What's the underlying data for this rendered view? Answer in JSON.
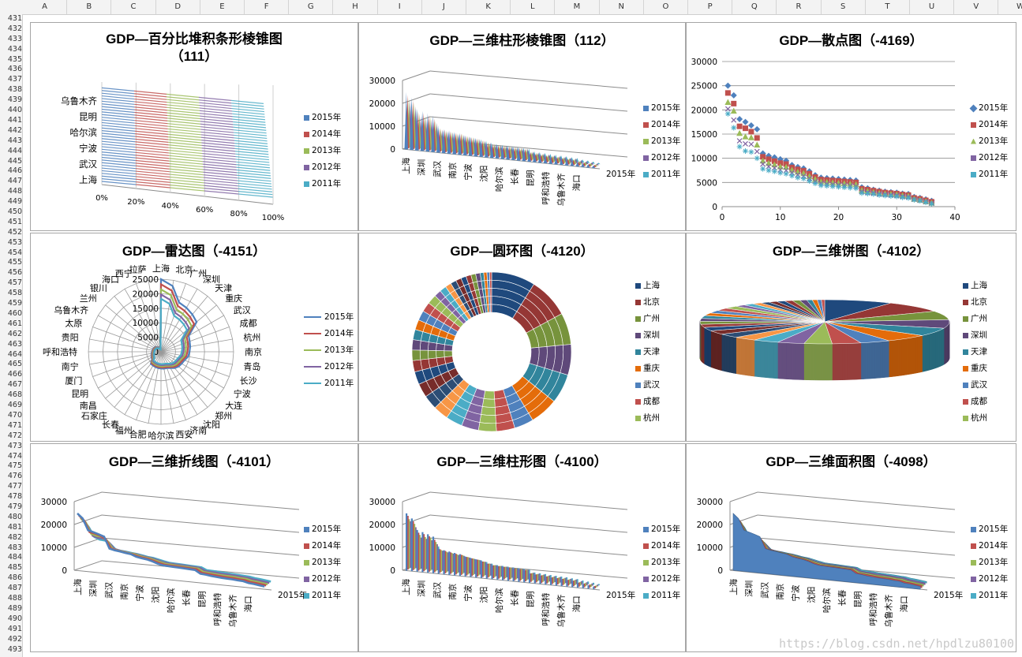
{
  "sheet": {
    "columns": [
      "A",
      "B",
      "C",
      "D",
      "E",
      "F",
      "G",
      "H",
      "I",
      "J",
      "K",
      "L",
      "M",
      "N",
      "O",
      "P",
      "Q",
      "R",
      "S",
      "T",
      "U",
      "V",
      "W"
    ],
    "row_start": 431,
    "row_end": 493
  },
  "years": [
    "2015年",
    "2014年",
    "2013年",
    "2012年",
    "2011年"
  ],
  "year_colors": [
    "#4f81bd",
    "#c0504d",
    "#9bbb59",
    "#8064a2",
    "#4bacc6"
  ],
  "city_colors": [
    "#1f497d",
    "#953735",
    "#77933c",
    "#5f497a",
    "#31859c",
    "#e46c0a",
    "#4f81bd",
    "#c0504d",
    "#9bbb59",
    "#8064a2",
    "#4bacc6",
    "#f79646",
    "#2c4d75",
    "#772c2a"
  ],
  "legend_cities": [
    "上海",
    "北京",
    "广州",
    "深圳",
    "天津",
    "重庆",
    "武汉",
    "成都",
    "杭州"
  ],
  "watermark": "https://blog.csdn.net/hpdlzu80100",
  "chart_data": [
    {
      "id": "p1",
      "type": "bar",
      "title": "GDP—百分比堆积条形棱锥图（111）",
      "title_line1": "GDP—百分比堆积条形棱锥图",
      "title_line2": "（111）",
      "categories": [
        "乌鲁木齐",
        "昆明",
        "哈尔滨",
        "宁波",
        "武汉",
        "上海"
      ],
      "x_ticks": [
        "0%",
        "20%",
        "40%",
        "60%",
        "80%",
        "100%"
      ],
      "series_shares": [
        0.2,
        0.2,
        0.2,
        0.2,
        0.2
      ]
    },
    {
      "id": "p2",
      "type": "bar",
      "title": "GDP—三维柱形棱锥图（112）",
      "y_ticks": [
        "30000",
        "20000",
        "10000",
        "0"
      ],
      "ylim": [
        0,
        30000
      ],
      "categories": [
        "上海",
        "深圳",
        "武汉",
        "南京",
        "宁波",
        "沈阳",
        "哈尔滨",
        "长春",
        "昆明",
        "呼和浩特",
        "乌鲁木齐",
        "海口"
      ],
      "depth_label": "2015年"
    },
    {
      "id": "p3",
      "type": "scatter",
      "title": "GDP—散点图（-4169）",
      "x_ticks": [
        "0",
        "10",
        "20",
        "30",
        "40"
      ],
      "y_ticks": [
        "30000",
        "25000",
        "20000",
        "15000",
        "10000",
        "5000",
        "0"
      ],
      "xlim": [
        0,
        40
      ],
      "ylim": [
        0,
        30000
      ],
      "series": [
        {
          "name": "2015年",
          "values": [
            25000,
            23000,
            18100,
            17500,
            16800,
            16000,
            11000,
            10500,
            10200,
            9800,
            9500,
            8600,
            8200,
            7900,
            7300,
            6500,
            6000,
            5900,
            5800,
            5700,
            5600,
            5500,
            5400,
            4000,
            3800,
            3500,
            3300,
            3100,
            3000,
            2900,
            2700,
            2600,
            2000,
            1800,
            1500,
            1200
          ]
        },
        {
          "name": "2014年",
          "values": [
            23500,
            21300,
            16600,
            16200,
            15500,
            14200,
            10300,
            9800,
            9400,
            9000,
            8800,
            8100,
            7700,
            7400,
            6800,
            6100,
            5600,
            5500,
            5400,
            5300,
            5200,
            5100,
            5000,
            3700,
            3500,
            3300,
            3100,
            2900,
            2800,
            2700,
            2500,
            2400,
            1800,
            1600,
            1300,
            1000
          ]
        },
        {
          "name": "2013年",
          "values": [
            21600,
            19800,
            15200,
            14500,
            14300,
            12800,
            9500,
            9000,
            8700,
            8300,
            8200,
            7600,
            7200,
            6900,
            6300,
            5700,
            5200,
            5100,
            5000,
            4900,
            4800,
            4700,
            4600,
            3400,
            3200,
            3000,
            2800,
            2700,
            2600,
            2500,
            2300,
            2200,
            1600,
            1400,
            1100,
            800
          ]
        },
        {
          "name": "2012年",
          "values": [
            20200,
            17900,
            13600,
            13000,
            12900,
            11400,
            8800,
            8300,
            8000,
            7600,
            7500,
            7000,
            6600,
            6300,
            5800,
            5200,
            4800,
            4700,
            4600,
            4500,
            4400,
            4300,
            4200,
            3100,
            2900,
            2800,
            2600,
            2500,
            2400,
            2300,
            2100,
            2000,
            1500,
            1300,
            1000,
            700
          ]
        },
        {
          "name": "2011年",
          "values": [
            19200,
            16300,
            12400,
            11500,
            11300,
            10000,
            7800,
            7500,
            7300,
            7000,
            6800,
            6400,
            6000,
            5800,
            5300,
            4800,
            4400,
            4300,
            4200,
            4100,
            4000,
            3900,
            3800,
            2800,
            2700,
            2600,
            2400,
            2300,
            2200,
            2100,
            1900,
            1800,
            1400,
            1200,
            900,
            600
          ]
        }
      ]
    },
    {
      "id": "p4",
      "type": "line",
      "title": "GDP—雷达图（-4151）",
      "categories": [
        "上海",
        "北京",
        "广州",
        "深圳",
        "天津",
        "重庆",
        "武汉",
        "成都",
        "杭州",
        "南京",
        "青岛",
        "长沙",
        "宁波",
        "大连",
        "郑州",
        "沈阳",
        "济南",
        "西安",
        "哈尔滨",
        "合肥",
        "福州",
        "长春",
        "石家庄",
        "南昌",
        "昆明",
        "厦门",
        "南宁",
        "呼和浩特",
        "贵阳",
        "太原",
        "乌鲁木齐",
        "兰州",
        "银川",
        "海口",
        "西宁",
        "拉萨"
      ],
      "r_ticks": [
        "25000",
        "20000",
        "15000",
        "10000",
        "5000",
        "0"
      ],
      "rlim": [
        0,
        25000
      ],
      "series_scale": [
        1.0,
        0.93,
        0.86,
        0.79,
        0.73
      ]
    },
    {
      "id": "p5",
      "type": "pie",
      "title": "GDP—圆环图（-4120）",
      "ring_count": 5,
      "values": [
        25000,
        23000,
        18100,
        17500,
        16800,
        16000,
        11000,
        10500,
        10200,
        9800,
        9500,
        8600,
        8200,
        7900,
        7300,
        6500,
        6000,
        5900,
        5800,
        5700,
        5600,
        5500,
        5400,
        4000,
        3800,
        3500,
        3300,
        3100,
        3000,
        2900,
        2700,
        2600,
        2000,
        1800,
        1500,
        1200
      ]
    },
    {
      "id": "p6",
      "type": "pie",
      "title": "GDP—三维饼图（-4102）",
      "values": [
        25000,
        23000,
        18100,
        17500,
        16800,
        16000,
        11000,
        10500,
        10200,
        9800,
        9500,
        8600,
        8200,
        7900,
        7300,
        6500,
        6000,
        5900,
        5800,
        5700,
        5600,
        5500,
        5400,
        4000,
        3800,
        3500,
        3300,
        3100,
        3000,
        2900,
        2700,
        2600,
        2000,
        1800,
        1500,
        1200
      ]
    },
    {
      "id": "p7",
      "type": "line",
      "title": "GDP—三维折线图（-4101）",
      "y_ticks": [
        "30000",
        "20000",
        "10000",
        "0"
      ],
      "ylim": [
        0,
        30000
      ],
      "categories": [
        "上海",
        "深圳",
        "武汉",
        "南京",
        "宁波",
        "沈阳",
        "哈尔滨",
        "长春",
        "昆明",
        "呼和浩特",
        "乌鲁木齐",
        "海口"
      ],
      "depth_label": "2015年"
    },
    {
      "id": "p8",
      "type": "bar",
      "title": "GDP—三维柱形图（-4100）",
      "y_ticks": [
        "30000",
        "20000",
        "10000",
        "0"
      ],
      "ylim": [
        0,
        30000
      ],
      "categories": [
        "上海",
        "深圳",
        "武汉",
        "南京",
        "宁波",
        "沈阳",
        "哈尔滨",
        "长春",
        "昆明",
        "呼和浩特",
        "乌鲁木齐",
        "海口"
      ],
      "depth_label": "2015年"
    },
    {
      "id": "p9",
      "type": "area",
      "title": "GDP—三维面积图（-4098）",
      "y_ticks": [
        "30000",
        "20000",
        "10000",
        "0"
      ],
      "ylim": [
        0,
        30000
      ],
      "categories": [
        "上海",
        "深圳",
        "武汉",
        "南京",
        "宁波",
        "沈阳",
        "哈尔滨",
        "长春",
        "昆明",
        "呼和浩特",
        "乌鲁木齐",
        "海口"
      ],
      "depth_label": "2015年"
    }
  ]
}
